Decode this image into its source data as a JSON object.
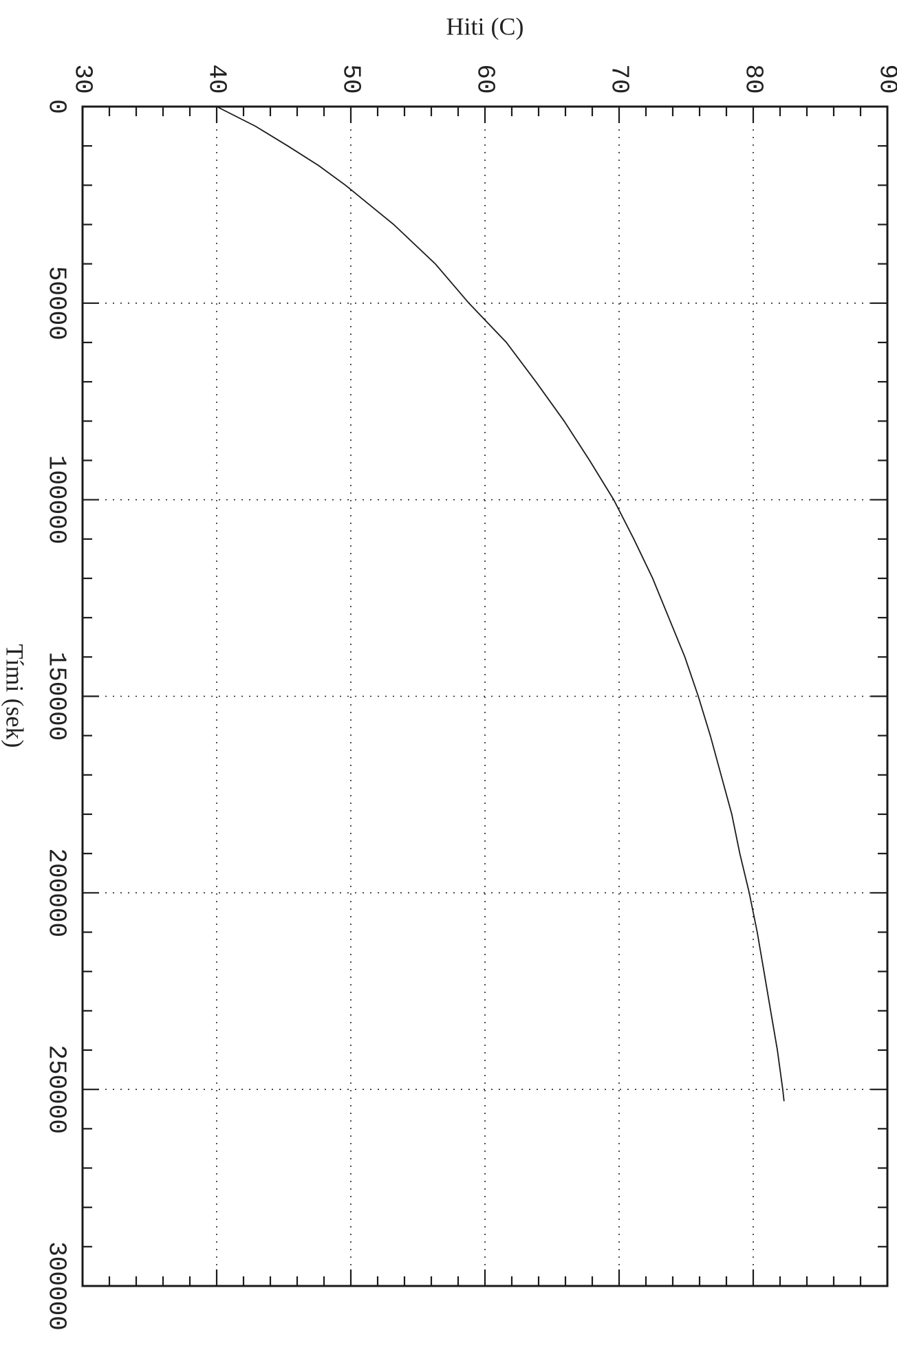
{
  "chart_data": {
    "type": "line",
    "orientation": "rotated-90-clockwise",
    "xlabel": "Tími (sek)",
    "ylabel": "Hiti (C)",
    "xlim": [
      0,
      300000
    ],
    "ylim": [
      30,
      90
    ],
    "x_ticks": [
      "0",
      "50000",
      "100000",
      "150000",
      "200000",
      "250000",
      "300000"
    ],
    "y_ticks": [
      "30",
      "40",
      "50",
      "60",
      "70",
      "80",
      "90"
    ],
    "grid": true,
    "series": [
      {
        "x": [
          0,
          5000,
          10000,
          15000,
          20000,
          30000,
          40000,
          50000,
          60000,
          70000,
          80000,
          90000,
          100000,
          110000,
          120000,
          130000,
          140000,
          150000,
          160000,
          170000,
          180000,
          190000,
          200000,
          210000,
          220000,
          230000,
          240000,
          250000,
          253000
        ],
        "y": [
          40.0,
          42.9,
          45.3,
          47.6,
          49.6,
          53.2,
          56.3,
          58.8,
          61.6,
          63.8,
          65.9,
          67.8,
          69.6,
          71.1,
          72.5,
          73.7,
          74.9,
          75.9,
          76.8,
          77.6,
          78.4,
          79.0,
          79.7,
          80.3,
          80.8,
          81.3,
          81.8,
          82.2,
          82.3
        ]
      }
    ]
  }
}
